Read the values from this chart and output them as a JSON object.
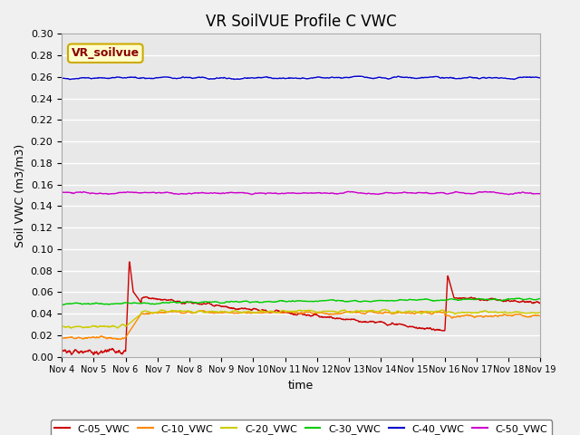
{
  "title": "VR SoilVUE Profile C VWC",
  "ylabel": "Soil VWC (m3/m3)",
  "xlabel": "time",
  "legend_label": "VR_soilvue",
  "ylim": [
    0.0,
    0.3
  ],
  "yticks": [
    0.0,
    0.02,
    0.04,
    0.06,
    0.08,
    0.1,
    0.12,
    0.14,
    0.16,
    0.18,
    0.2,
    0.22,
    0.24,
    0.26,
    0.28,
    0.3
  ],
  "date_start": "2023-11-04",
  "date_end": "2023-11-19",
  "series": {
    "C-05_VWC": {
      "color": "#cc0000",
      "lw": 1.0
    },
    "C-10_VWC": {
      "color": "#ff8800",
      "lw": 1.0
    },
    "C-20_VWC": {
      "color": "#cccc00",
      "lw": 1.0
    },
    "C-30_VWC": {
      "color": "#00cc00",
      "lw": 1.0
    },
    "C-40_VWC": {
      "color": "#0000cc",
      "lw": 1.0
    },
    "C-50_VWC": {
      "color": "#cc00cc",
      "lw": 1.0
    }
  },
  "background_color": "#e8e8e8",
  "grid_color": "#ffffff",
  "title_fontsize": 12
}
